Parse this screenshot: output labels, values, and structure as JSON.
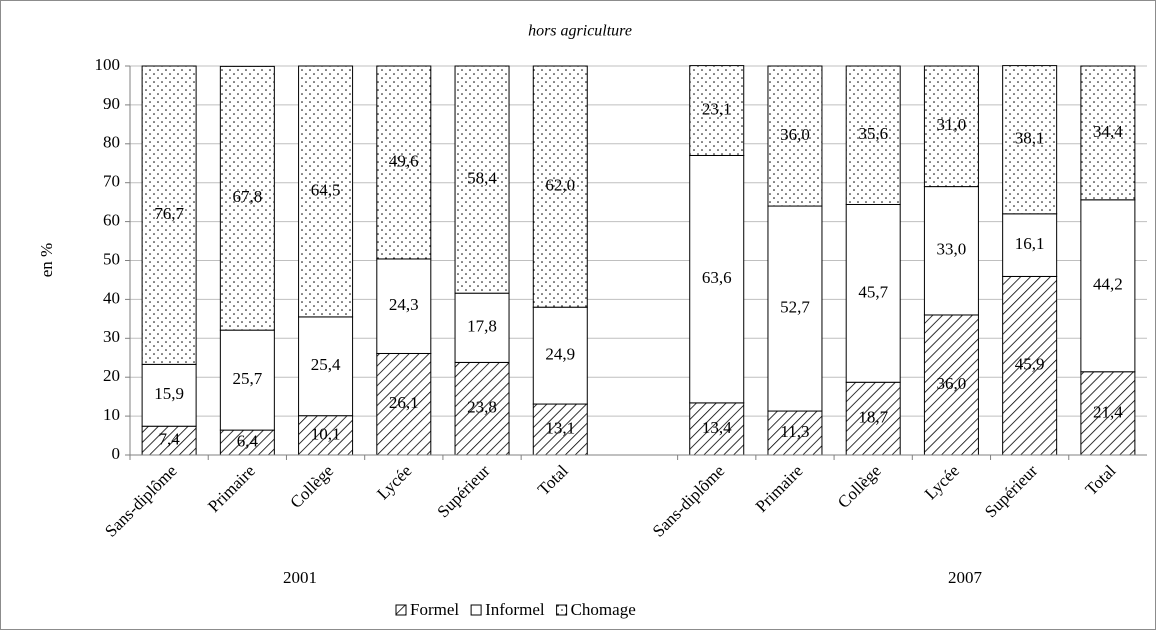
{
  "chart_data": {
    "type": "stacked_bar",
    "title": "hors agriculture",
    "y_label": "en %",
    "categories": [
      "Sans-diplôme",
      "Primaire",
      "Collège",
      "Lycée",
      "Supérieur",
      "Total",
      null,
      "Sans-diplôme",
      "Primaire",
      "Collège",
      "Lycée",
      "Supérieur",
      "Total"
    ],
    "group_labels": [
      "2001",
      "2007"
    ],
    "series": [
      {
        "name": "Formel",
        "color": "#000000",
        "pattern": "hatch",
        "values": [
          7.4,
          6.4,
          10.1,
          26.1,
          23.8,
          13.1,
          null,
          13.4,
          11.3,
          18.7,
          36.0,
          45.9,
          21.4
        ],
        "value_labels": [
          "7,4",
          "6,4",
          "10,1",
          "26,1",
          "23,8",
          "13,1",
          null,
          "13,4",
          "11,3",
          "18,7",
          "36,0",
          "45,9",
          "21,4"
        ]
      },
      {
        "name": "Informel",
        "color": "#000000",
        "pattern": "none",
        "values": [
          15.9,
          25.7,
          25.4,
          24.3,
          17.8,
          24.9,
          null,
          63.6,
          52.7,
          45.7,
          33.0,
          16.1,
          44.2
        ],
        "value_labels": [
          "15,9",
          "25,7",
          "25,4",
          "24,3",
          "17,8",
          "24,9",
          null,
          "63,6",
          "52,7",
          "45,7",
          "33,0",
          "16,1",
          "44,2"
        ]
      },
      {
        "name": "Chomage",
        "color": "#000000",
        "pattern": "dots",
        "values": [
          76.7,
          67.8,
          64.5,
          49.6,
          58.4,
          62.0,
          null,
          23.1,
          36.0,
          35.6,
          31.0,
          38.1,
          34.4
        ],
        "value_labels": [
          "76,7",
          "67,8",
          "64,5",
          "49,6",
          "58,4",
          "62,0",
          null,
          "23,1",
          "36,0",
          "35,6",
          "31,0",
          "38,1",
          "34,4"
        ]
      }
    ],
    "ylim": [
      0,
      100
    ],
    "yticks": [
      0,
      10,
      20,
      30,
      40,
      50,
      60,
      70,
      80,
      90,
      100
    ],
    "grid": true,
    "legend": "bottom"
  }
}
